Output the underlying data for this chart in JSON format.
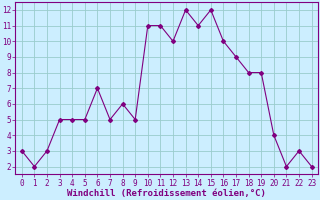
{
  "x": [
    0,
    1,
    2,
    3,
    4,
    5,
    6,
    7,
    8,
    9,
    10,
    11,
    12,
    13,
    14,
    15,
    16,
    17,
    18,
    19,
    20,
    21,
    22,
    23
  ],
  "y": [
    3,
    2,
    3,
    5,
    5,
    5,
    7,
    5,
    6,
    5,
    11,
    11,
    10,
    12,
    11,
    12,
    10,
    9,
    8,
    8,
    4,
    2,
    3,
    2
  ],
  "line_color": "#800080",
  "marker": "D",
  "marker_size": 2.0,
  "background_color": "#cceeff",
  "grid_color": "#99cccc",
  "xlabel": "Windchill (Refroidissement éolien,°C)",
  "xlim": [
    -0.5,
    23.5
  ],
  "ylim": [
    1.5,
    12.5
  ],
  "yticks": [
    2,
    3,
    4,
    5,
    6,
    7,
    8,
    9,
    10,
    11,
    12
  ],
  "xticks": [
    0,
    1,
    2,
    3,
    4,
    5,
    6,
    7,
    8,
    9,
    10,
    11,
    12,
    13,
    14,
    15,
    16,
    17,
    18,
    19,
    20,
    21,
    22,
    23
  ],
  "tick_color": "#800080",
  "spine_color": "#800080",
  "font_color": "#800080",
  "tick_fontsize": 5.5,
  "xlabel_fontsize": 6.5
}
